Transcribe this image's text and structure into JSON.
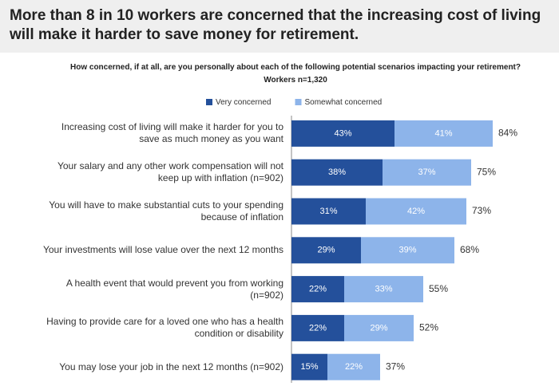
{
  "chart_data": {
    "type": "stacked-bar-horizontal",
    "title": "More than 8 in 10 workers are concerned that the increasing cost of living will make it harder to save money for retirement.",
    "subtitle": "How concerned, if at all, are you personally about each of the following potential scenarios impacting your retirement?",
    "note": "Workers n=1,320",
    "categories": [
      "Increasing cost of living will make it harder for you to save as much money as you want",
      "Your salary and any other work compensation will not keep up with inflation (n=902)",
      "You will have to make substantial cuts to your spending because of inflation",
      "Your investments will lose value over the next 12 months",
      "A health event that would prevent you from working (n=902)",
      "Having to provide care for a loved one who has a health condition or disability",
      "You may lose your job in the next 12 months (n=902)"
    ],
    "series": [
      {
        "name": "Very concerned",
        "color": "#24509b",
        "values": [
          43,
          38,
          31,
          29,
          22,
          22,
          15
        ],
        "value_labels": [
          "43%",
          "38%",
          "31%",
          "29%",
          "22%",
          "22%",
          "15%"
        ]
      },
      {
        "name": "Somewhat concerned",
        "color": "#8db4ea",
        "values": [
          41,
          37,
          42,
          39,
          33,
          29,
          22
        ],
        "value_labels": [
          "41%",
          "37%",
          "42%",
          "39%",
          "33%",
          "29%",
          "22%"
        ]
      }
    ],
    "totals": [
      84,
      75,
      73,
      68,
      55,
      52,
      37
    ],
    "total_labels": [
      "84%",
      "75%",
      "73%",
      "68%",
      "55%",
      "52%",
      "37%"
    ],
    "xlim": [
      0,
      100
    ]
  }
}
